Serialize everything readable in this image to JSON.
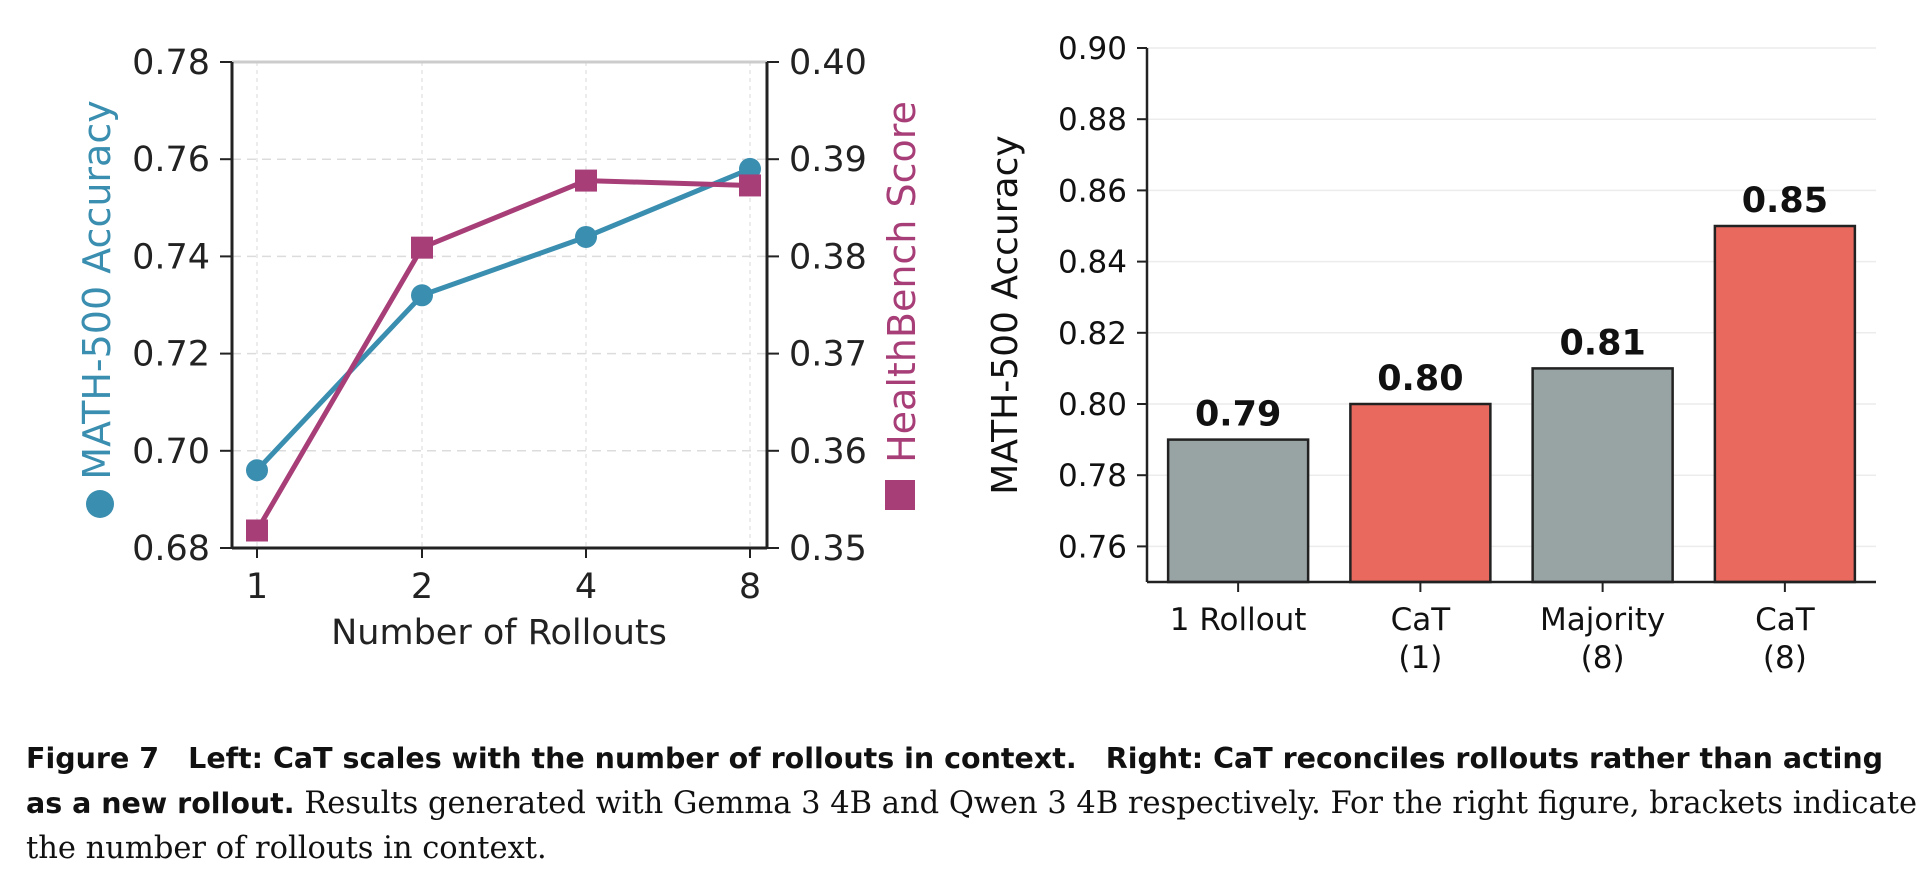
{
  "chart_data": [
    {
      "type": "line",
      "xlabel": "Number of Rollouts",
      "x": [
        "1",
        "2",
        "4",
        "8"
      ],
      "grid": true,
      "left_axis": {
        "label": "MATH-500 Accuracy",
        "ylim": [
          0.68,
          0.78
        ],
        "ticks": [
          "0.68",
          "0.70",
          "0.72",
          "0.74",
          "0.76",
          "0.78"
        ],
        "color": "#3a8eb0"
      },
      "right_axis": {
        "label": "HealthBench Score",
        "ylim": [
          0.35,
          0.4
        ],
        "ticks": [
          "0.35",
          "0.36",
          "0.37",
          "0.38",
          "0.39",
          "0.40"
        ],
        "color": "#a83e78"
      },
      "series": [
        {
          "name": "MATH-500 Accuracy",
          "axis": "left",
          "marker": "circle",
          "color": "#3a8eb0",
          "values": [
            0.696,
            0.732,
            0.744,
            0.758
          ]
        },
        {
          "name": "HealthBench Score",
          "axis": "right",
          "marker": "square",
          "color": "#a83e78",
          "values": [
            0.3518,
            0.3809,
            0.3878,
            0.3873
          ]
        }
      ]
    },
    {
      "type": "bar",
      "ylabel": "MATH-500 Accuracy",
      "ylim": [
        0.75,
        0.9
      ],
      "ticks": [
        "0.76",
        "0.78",
        "0.80",
        "0.82",
        "0.84",
        "0.86",
        "0.88",
        "0.90"
      ],
      "categories": [
        [
          "1 Rollout"
        ],
        [
          "CaT",
          "(1)"
        ],
        [
          "Majority",
          "(8)"
        ],
        [
          "CaT",
          "(8)"
        ]
      ],
      "values": [
        0.79,
        0.8,
        0.81,
        0.85
      ],
      "value_labels": [
        "0.79",
        "0.80",
        "0.81",
        "0.85"
      ],
      "colors": [
        "#98a3a4",
        "#e9695f",
        "#98a3a4",
        "#e9695f"
      ],
      "grid": true
    }
  ],
  "caption": {
    "figure_label": "Figure 7",
    "bold_left": "Left: CaT scales with the number of rollouts in context.",
    "bold_right": "Right: CaT reconciles rollouts rather than acting as a new rollout.",
    "text_line": "Results generated with Gemma 3 4B and Qwen 3 4B respectively. For the right figure, brackets indicate the number of rollouts in context."
  }
}
